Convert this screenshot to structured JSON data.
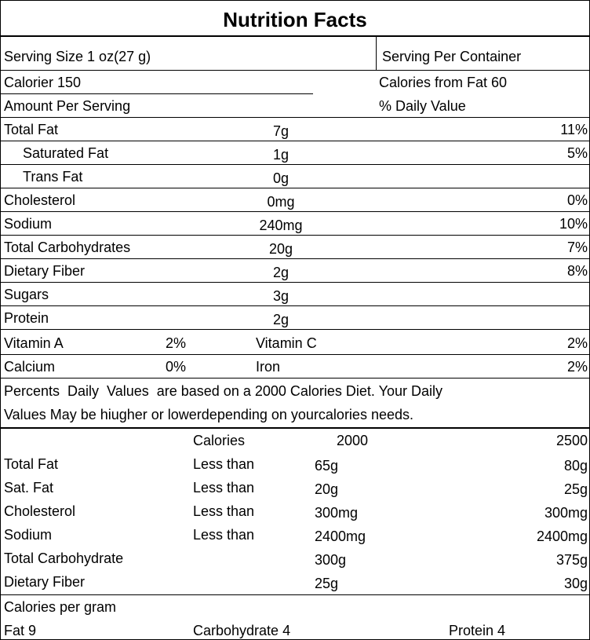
{
  "title": "Nutrition Facts",
  "serving": {
    "size": "Serving Size 1 oz(27 g)",
    "per_container": "Serving Per Container"
  },
  "calories": {
    "total": "Calorier 150",
    "from_fat": "Calories from Fat 60"
  },
  "headers": {
    "amount": "Amount Per Serving",
    "daily_value": "% Daily Value"
  },
  "nutrients": [
    {
      "name": "Total Fat",
      "amount": "7g",
      "dv": "11%"
    },
    {
      "name": "Saturated Fat",
      "amount": "1g",
      "dv": "5%",
      "indent": true
    },
    {
      "name": "Trans Fat",
      "amount": "0g",
      "indent": true
    },
    {
      "name": "Cholesterol",
      "amount": "0mg",
      "dv": "0%"
    },
    {
      "name": "Sodium",
      "amount": "240mg",
      "dv": "10%"
    },
    {
      "name": "Total Carbohydrates",
      "amount": "20g",
      "dv": "7%"
    },
    {
      "name": "Dietary Fiber",
      "amount": "2g",
      "dv": "8%"
    },
    {
      "name": "Sugars",
      "amount": "3g"
    },
    {
      "name": "Protein",
      "amount": "2g"
    }
  ],
  "vitamins": [
    [
      "Vitamin A",
      "2%",
      "Vitamin C",
      "2%"
    ],
    [
      "Calcium",
      "0%",
      "Iron",
      "2%"
    ]
  ],
  "footnote": [
    "Percents  Daily  Values  are based on a 2000 Calories Diet. Your Daily",
    "Values May be hiugher or lowerdepending on yourcalories needs."
  ],
  "daily_table": {
    "header": [
      "Calories",
      "2000",
      "2500"
    ],
    "rows": [
      {
        "name": "Total Fat",
        "limit": "Less than",
        "v2000": "65g",
        "v2500": "80g"
      },
      {
        "name": "Sat. Fat",
        "limit": "Less than",
        "v2000": "20g",
        "v2500": "25g"
      },
      {
        "name": "Cholesterol",
        "limit": "Less than",
        "v2000": "300mg",
        "v2500": "300mg"
      },
      {
        "name": "Sodium",
        "limit": "Less than",
        "v2000": "2400mg",
        "v2500": "2400mg"
      },
      {
        "name": "Total Carbohydrate",
        "v2000": "300g",
        "v2500": "375g"
      },
      {
        "name": "Dietary Fiber",
        "v2000": "25g",
        "v2500": "30g"
      }
    ]
  },
  "calories_per_gram": {
    "title": "Calories per gram",
    "items": [
      "Fat 9",
      "Carbohydrate 4",
      "Protein 4"
    ]
  }
}
